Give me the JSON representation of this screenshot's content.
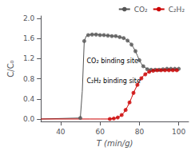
{
  "chart_data": {
    "type": "line",
    "xlabel": "T (min/g)",
    "ylabel": "C/C₀",
    "xlim": [
      30,
      105
    ],
    "ylim": [
      -0.05,
      2.05
    ],
    "xticks": [
      40,
      60,
      80,
      100
    ],
    "yticks": [
      {
        "value": 0.0,
        "label": "0.0"
      },
      0.4,
      0.8,
      1.2,
      1.6,
      {
        "value": 2.0,
        "label": "2.0"
      }
    ],
    "grid": false,
    "legend": "upper right",
    "marker": "circle",
    "series": [
      {
        "name": "CO₂",
        "color": "#555555",
        "x": [
          30,
          50.0,
          51.0,
          52.0,
          53.0,
          54.0,
          55.0,
          56.0,
          57.0,
          58.0,
          59.0,
          60.0,
          61.0,
          62.0,
          63.0,
          64.0,
          65.0,
          66.0,
          67.0,
          68.0,
          69.0,
          70.0,
          71.0,
          72.0,
          73.0,
          74.0,
          75.0,
          76.0,
          77.0,
          78.0,
          79.0,
          80.0,
          81.0,
          82.0,
          83.0,
          84.0,
          85.0,
          86.0,
          87.0,
          88.0,
          89.0,
          90.0,
          91.0,
          92.0,
          93.0,
          94.0,
          95.0,
          96.0,
          97.0,
          98.0,
          99.0,
          100.0
        ],
        "values": [
          0.0,
          0.02,
          0.55,
          1.55,
          1.65,
          1.67,
          1.68,
          1.68,
          1.68,
          1.68,
          1.68,
          1.67,
          1.67,
          1.67,
          1.66,
          1.66,
          1.66,
          1.65,
          1.65,
          1.65,
          1.64,
          1.63,
          1.62,
          1.61,
          1.59,
          1.56,
          1.53,
          1.48,
          1.42,
          1.35,
          1.26,
          1.17,
          1.1,
          1.05,
          1.02,
          1.0,
          0.99,
          0.98,
          0.98,
          0.98,
          0.98,
          0.98,
          0.99,
          0.99,
          0.99,
          1.0,
          1.0,
          1.0,
          1.0,
          1.0,
          1.0,
          1.0
        ],
        "marker_x": [
          50.0,
          52.0,
          54.0,
          56.0,
          58.0,
          60.0,
          62.0,
          64.0,
          66.0,
          68.0,
          70.0,
          72.0,
          74.0,
          76.0,
          78.0,
          80.0,
          82.0,
          84.0,
          86.0,
          88.0,
          90.0,
          92.0,
          94.0,
          96.0,
          98.0,
          100.0
        ],
        "marker_values": [
          0.02,
          1.55,
          1.67,
          1.68,
          1.68,
          1.67,
          1.67,
          1.66,
          1.65,
          1.65,
          1.63,
          1.61,
          1.56,
          1.48,
          1.35,
          1.17,
          1.05,
          0.99,
          0.98,
          0.98,
          0.98,
          0.99,
          1.0,
          1.0,
          1.0,
          1.0
        ]
      },
      {
        "name": "C₂H₂",
        "color": "#cc0000",
        "x": [
          30,
          50.0,
          55.0,
          60.0,
          65.0,
          67.0,
          68.0,
          69.0,
          70.0,
          71.0,
          72.0,
          73.0,
          74.0,
          75.0,
          76.0,
          77.0,
          78.0,
          79.0,
          80.0,
          81.0,
          82.0,
          83.0,
          84.0,
          85.0,
          86.0,
          87.0,
          88.0,
          89.0,
          90.0,
          91.0,
          92.0,
          93.0,
          94.0,
          95.0,
          96.0,
          97.0,
          98.0,
          99.0,
          100.0
        ],
        "values": [
          0.0,
          0.0,
          0.0,
          0.0,
          0.0,
          0.01,
          0.02,
          0.03,
          0.05,
          0.08,
          0.12,
          0.18,
          0.25,
          0.33,
          0.42,
          0.52,
          0.6,
          0.68,
          0.75,
          0.81,
          0.86,
          0.89,
          0.92,
          0.94,
          0.95,
          0.96,
          0.97,
          0.97,
          0.97,
          0.97,
          0.97,
          0.97,
          0.97,
          0.97,
          0.97,
          0.97,
          0.97,
          0.97,
          0.97
        ],
        "marker_x": [
          65.0,
          67.0,
          69.0,
          71.0,
          73.0,
          75.0,
          77.0,
          79.0,
          81.0,
          83.0,
          85.0,
          87.0,
          89.0,
          91.0,
          93.0,
          95.0,
          97.0,
          99.0
        ],
        "marker_values": [
          0.0,
          0.01,
          0.03,
          0.08,
          0.18,
          0.33,
          0.52,
          0.68,
          0.81,
          0.89,
          0.94,
          0.96,
          0.97,
          0.97,
          0.97,
          0.97,
          0.97,
          0.97
        ]
      }
    ],
    "annotations": [
      "CO₂ binding site",
      "C₂H₂ binding site"
    ]
  }
}
